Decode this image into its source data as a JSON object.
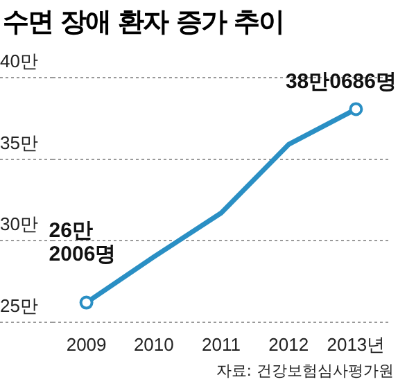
{
  "chart_data": {
    "type": "line",
    "title": "수면 장애 환자 증가 추이",
    "categories": [
      "2009",
      "2010",
      "2011",
      "2012",
      "2013년"
    ],
    "series": [
      {
        "color": "#2a8fc4",
        "values": [
          26.2006,
          29.0,
          31.7,
          35.9,
          38.0686
        ]
      }
    ],
    "ylim": [
      25,
      40
    ],
    "yticks": [
      {
        "value": 25,
        "label": "25만"
      },
      {
        "value": 30,
        "label": "30만"
      },
      {
        "value": 35,
        "label": "35만"
      },
      {
        "value": 40,
        "label": "40만"
      }
    ],
    "grid": "y",
    "legend": false,
    "annotations": [
      {
        "text": "26만\n2006명",
        "x": "2009",
        "y": 26.2006
      },
      {
        "text": "38만0686명",
        "x": "2013년",
        "y": 38.0686
      },
      "자료: 건강보험심사평가원"
    ]
  }
}
